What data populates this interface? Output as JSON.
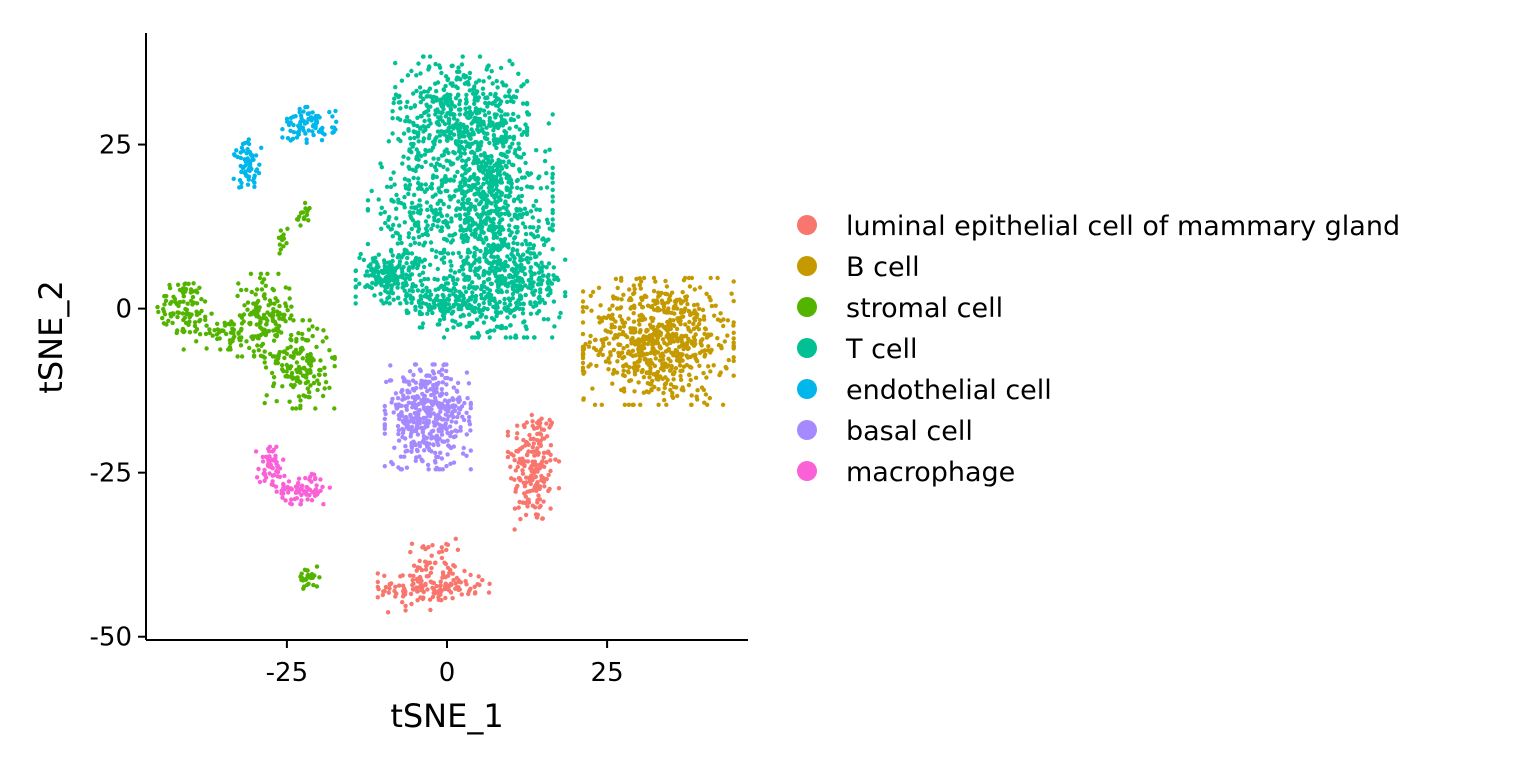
{
  "chart_data": {
    "type": "scatter",
    "title": "",
    "xlabel": "tSNE_1",
    "ylabel": "tSNE_2",
    "xlim": [
      -47,
      47
    ],
    "ylim": [
      -50.5,
      42
    ],
    "xticks": [
      -25,
      0,
      25
    ],
    "yticks": [
      -50,
      -25,
      0,
      25
    ],
    "x_tick_labels": [
      "-25",
      "0",
      "25"
    ],
    "y_tick_labels": [
      "-50",
      "-25",
      "0",
      "25"
    ],
    "grid": false,
    "legend_position": "right",
    "series": [
      {
        "name": "luminal epithelial cell of mammary gland",
        "color": "#F8766D",
        "clusters": [
          {
            "cx": 13.5,
            "cy": -24,
            "sx": 1.9,
            "sy": 4.6,
            "n": 190
          },
          {
            "cx": -4.5,
            "cy": -42.5,
            "sx": 3,
            "sy": 1.8,
            "n": 110
          },
          {
            "cx": 2,
            "cy": -42,
            "sx": 3,
            "sy": 1,
            "n": 45
          },
          {
            "cx": -2.5,
            "cy": -38,
            "sx": 2,
            "sy": 1.5,
            "n": 30
          }
        ]
      },
      {
        "name": "B cell",
        "color": "#C49A00",
        "clusters": [
          {
            "cx": 33,
            "cy": -5,
            "sx": 5.6,
            "sy": 4.6,
            "n": 700
          }
        ]
      },
      {
        "name": "stromal cell",
        "color": "#53B400",
        "clusters": [
          {
            "cx": -41,
            "cy": 0.5,
            "sx": 2,
            "sy": 2,
            "n": 90
          },
          {
            "cx": -35,
            "cy": -3.5,
            "sx": 3,
            "sy": 1.3,
            "n": 60
          },
          {
            "cx": -28.5,
            "cy": -1,
            "sx": 2,
            "sy": 3,
            "n": 140
          },
          {
            "cx": -23,
            "cy": -8.5,
            "sx": 2.6,
            "sy": 3.2,
            "n": 170
          },
          {
            "cx": -22.5,
            "cy": 14,
            "sx": 0.6,
            "sy": 1,
            "n": 18
          },
          {
            "cx": -25.5,
            "cy": 10,
            "sx": 0.6,
            "sy": 1.2,
            "n": 12
          },
          {
            "cx": -21.5,
            "cy": -41,
            "sx": 0.8,
            "sy": 0.8,
            "n": 32
          }
        ]
      },
      {
        "name": "T cell",
        "color": "#00C094",
        "clusters": [
          {
            "cx": 2,
            "cy": 30,
            "sx": 5,
            "sy": 4,
            "n": 450
          },
          {
            "cx": 6,
            "cy": 17,
            "sx": 5,
            "sy": 6,
            "n": 650
          },
          {
            "cx": -5,
            "cy": 15,
            "sx": 3.5,
            "sy": 5,
            "n": 180
          },
          {
            "cx": 9,
            "cy": 4,
            "sx": 4.5,
            "sy": 4,
            "n": 450
          },
          {
            "cx": -9,
            "cy": 5,
            "sx": 2.5,
            "sy": 2,
            "n": 180
          },
          {
            "cx": 0,
            "cy": 0.5,
            "sx": 3,
            "sy": 1.6,
            "n": 150
          }
        ]
      },
      {
        "name": "endothelial cell",
        "color": "#00B6EB",
        "clusters": [
          {
            "cx": -21.5,
            "cy": 28,
            "sx": 2,
            "sy": 1.3,
            "n": 85
          },
          {
            "cx": -31,
            "cy": 22,
            "sx": 1.1,
            "sy": 1.8,
            "n": 65
          }
        ]
      },
      {
        "name": "basal cell",
        "color": "#A58AFF",
        "clusters": [
          {
            "cx": -3,
            "cy": -16.5,
            "sx": 3.2,
            "sy": 3.8,
            "n": 430
          }
        ]
      },
      {
        "name": "macrophage",
        "color": "#FB61D7",
        "clusters": [
          {
            "cx": -27.5,
            "cy": -24,
            "sx": 1.1,
            "sy": 1.4,
            "n": 55
          },
          {
            "cx": -22.5,
            "cy": -27.5,
            "sx": 2,
            "sy": 1.1,
            "n": 75
          }
        ]
      }
    ]
  }
}
